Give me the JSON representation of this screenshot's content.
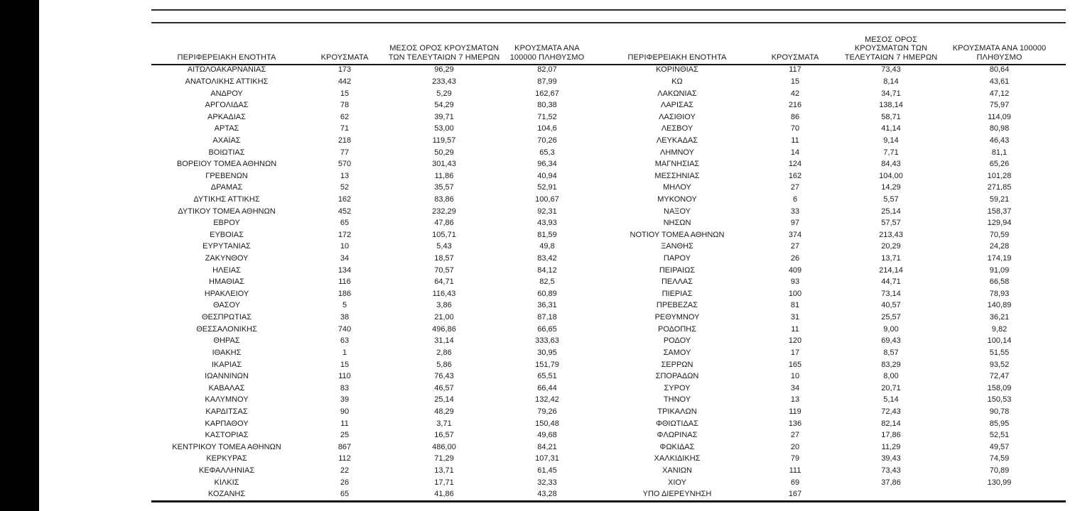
{
  "page": {
    "background_color": "#ffffff",
    "left_band_color": "#000000",
    "rule_color": "#2b2b2b",
    "text_color": "#1a1a1a"
  },
  "table_headers": {
    "col_region": "ΠΕΡΙΦΕΡΕΙΑΚΗ ΕΝΟΤΗΤΑ",
    "col_cases": "ΚΡΟΥΣΜΑΤΑ",
    "col_avg7": "ΜΕΣΟΣ ΟΡΟΣ ΚΡΟΥΣΜΑΤΩΝ ΤΩΝ ΤΕΛΕΥΤΑΙΩΝ 7 ΗΜΕΡΩΝ",
    "col_per100k": "ΚΡΟΥΣΜΑΤΑ ΑΝΑ 100000 ΠΛΗΘΥΣΜΟ"
  },
  "left_table": {
    "rows": [
      [
        "ΑΙΤΩΛΟΑΚΑΡΝΑΝΙΑΣ",
        "173",
        "96,29",
        "82,07"
      ],
      [
        "ΑΝΑΤΟΛΙΚΗΣ ΑΤΤΙΚΗΣ",
        "442",
        "233,43",
        "87,99"
      ],
      [
        "ΑΝΔΡΟΥ",
        "15",
        "5,29",
        "162,67"
      ],
      [
        "ΑΡΓΟΛΙΔΑΣ",
        "78",
        "54,29",
        "80,38"
      ],
      [
        "ΑΡΚΑΔΙΑΣ",
        "62",
        "39,71",
        "71,52"
      ],
      [
        "ΑΡΤΑΣ",
        "71",
        "53,00",
        "104,6"
      ],
      [
        "ΑΧΑΪΑΣ",
        "218",
        "119,57",
        "70,26"
      ],
      [
        "ΒΟΙΩΤΙΑΣ",
        "77",
        "50,29",
        "65,3"
      ],
      [
        "ΒΟΡΕΙΟΥ ΤΟΜΕΑ ΑΘΗΝΩΝ",
        "570",
        "301,43",
        "96,34"
      ],
      [
        "ΓΡΕΒΕΝΩΝ",
        "13",
        "11,86",
        "40,94"
      ],
      [
        "ΔΡΑΜΑΣ",
        "52",
        "35,57",
        "52,91"
      ],
      [
        "ΔΥΤΙΚΗΣ ΑΤΤΙΚΗΣ",
        "162",
        "83,86",
        "100,67"
      ],
      [
        "ΔΥΤΙΚΟΥ ΤΟΜΕΑ ΑΘΗΝΩΝ",
        "452",
        "232,29",
        "92,31"
      ],
      [
        "ΕΒΡΟΥ",
        "65",
        "47,86",
        "43,93"
      ],
      [
        "ΕΥΒΟΙΑΣ",
        "172",
        "105,71",
        "81,59"
      ],
      [
        "ΕΥΡΥΤΑΝΙΑΣ",
        "10",
        "5,43",
        "49,8"
      ],
      [
        "ΖΑΚΥΝΘΟΥ",
        "34",
        "18,57",
        "83,42"
      ],
      [
        "ΗΛΕΙΑΣ",
        "134",
        "70,57",
        "84,12"
      ],
      [
        "ΗΜΑΘΙΑΣ",
        "116",
        "64,71",
        "82,5"
      ],
      [
        "ΗΡΑΚΛΕΙΟΥ",
        "186",
        "116,43",
        "60,89"
      ],
      [
        "ΘΑΣΟΥ",
        "5",
        "3,86",
        "36,31"
      ],
      [
        "ΘΕΣΠΡΩΤΙΑΣ",
        "38",
        "21,00",
        "87,18"
      ],
      [
        "ΘΕΣΣΑΛΟΝΙΚΗΣ",
        "740",
        "496,86",
        "66,65"
      ],
      [
        "ΘΗΡΑΣ",
        "63",
        "31,14",
        "333,63"
      ],
      [
        "ΙΘΑΚΗΣ",
        "1",
        "2,86",
        "30,95"
      ],
      [
        "ΙΚΑΡΙΑΣ",
        "15",
        "5,86",
        "151,79"
      ],
      [
        "ΙΩΑΝΝΙΝΩΝ",
        "110",
        "76,43",
        "65,51"
      ],
      [
        "ΚΑΒΑΛΑΣ",
        "83",
        "46,57",
        "66,44"
      ],
      [
        "ΚΑΛΥΜΝΟΥ",
        "39",
        "25,14",
        "132,42"
      ],
      [
        "ΚΑΡΔΙΤΣΑΣ",
        "90",
        "48,29",
        "79,26"
      ],
      [
        "ΚΑΡΠΑΘΟΥ",
        "11",
        "3,71",
        "150,48"
      ],
      [
        "ΚΑΣΤΟΡΙΑΣ",
        "25",
        "16,57",
        "49,68"
      ],
      [
        "ΚΕΝΤΡΙΚΟΥ ΤΟΜΕΑ ΑΘΗΝΩΝ",
        "867",
        "486,00",
        "84,21"
      ],
      [
        "ΚΕΡΚΥΡΑΣ",
        "112",
        "71,29",
        "107,31"
      ],
      [
        "ΚΕΦΑΛΛΗΝΙΑΣ",
        "22",
        "13,71",
        "61,45"
      ],
      [
        "ΚΙΛΚΙΣ",
        "26",
        "17,71",
        "32,33"
      ],
      [
        "ΚΟΖΑΝΗΣ",
        "65",
        "41,86",
        "43,28"
      ]
    ]
  },
  "right_table": {
    "rows": [
      [
        "ΚΟΡΙΝΘΙΑΣ",
        "117",
        "73,43",
        "80,64"
      ],
      [
        "ΚΩ",
        "15",
        "8,14",
        "43,61"
      ],
      [
        "ΛΑΚΩΝΙΑΣ",
        "42",
        "34,71",
        "47,12"
      ],
      [
        "ΛΑΡΙΣΑΣ",
        "216",
        "138,14",
        "75,97"
      ],
      [
        "ΛΑΣΙΘΙΟΥ",
        "86",
        "58,71",
        "114,09"
      ],
      [
        "ΛΕΣΒΟΥ",
        "70",
        "41,14",
        "80,98"
      ],
      [
        "ΛΕΥΚΑΔΑΣ",
        "11",
        "9,14",
        "46,43"
      ],
      [
        "ΛΗΜΝΟΥ",
        "14",
        "7,71",
        "81,1"
      ],
      [
        "ΜΑΓΝΗΣΙΑΣ",
        "124",
        "84,43",
        "65,26"
      ],
      [
        "ΜΕΣΣΗΝΙΑΣ",
        "162",
        "104,00",
        "101,28"
      ],
      [
        "ΜΗΛΟΥ",
        "27",
        "14,29",
        "271,85"
      ],
      [
        "ΜΥΚΟΝΟΥ",
        "6",
        "5,57",
        "59,21"
      ],
      [
        "ΝΑΞΟΥ",
        "33",
        "25,14",
        "158,37"
      ],
      [
        "ΝΗΣΩΝ",
        "97",
        "57,57",
        "129,94"
      ],
      [
        "ΝΟΤΙΟΥ ΤΟΜΕΑ ΑΘΗΝΩΝ",
        "374",
        "213,43",
        "70,59"
      ],
      [
        "ΞΑΝΘΗΣ",
        "27",
        "20,29",
        "24,28"
      ],
      [
        "ΠΑΡΟΥ",
        "26",
        "13,71",
        "174,19"
      ],
      [
        "ΠΕΙΡΑΙΩΣ",
        "409",
        "214,14",
        "91,09"
      ],
      [
        "ΠΕΛΛΑΣ",
        "93",
        "44,71",
        "66,58"
      ],
      [
        "ΠΙΕΡΙΑΣ",
        "100",
        "73,14",
        "78,93"
      ],
      [
        "ΠΡΕΒΕΖΑΣ",
        "81",
        "40,57",
        "140,89"
      ],
      [
        "ΡΕΘΥΜΝΟΥ",
        "31",
        "25,57",
        "36,21"
      ],
      [
        "ΡΟΔΟΠΗΣ",
        "11",
        "9,00",
        "9,82"
      ],
      [
        "ΡΟΔΟΥ",
        "120",
        "69,43",
        "100,14"
      ],
      [
        "ΣΑΜΟΥ",
        "17",
        "8,57",
        "51,55"
      ],
      [
        "ΣΕΡΡΩΝ",
        "165",
        "83,29",
        "93,52"
      ],
      [
        "ΣΠΟΡΑΔΩΝ",
        "10",
        "8,00",
        "72,47"
      ],
      [
        "ΣΥΡΟΥ",
        "34",
        "20,71",
        "158,09"
      ],
      [
        "ΤΗΝΟΥ",
        "13",
        "5,14",
        "150,53"
      ],
      [
        "ΤΡΙΚΑΛΩΝ",
        "119",
        "72,43",
        "90,78"
      ],
      [
        "ΦΘΙΩΤΙΔΑΣ",
        "136",
        "82,14",
        "85,95"
      ],
      [
        "ΦΛΩΡΙΝΑΣ",
        "27",
        "17,86",
        "52,51"
      ],
      [
        "ΦΩΚΙΔΑΣ",
        "20",
        "11,29",
        "49,57"
      ],
      [
        "ΧΑΛΚΙΔΙΚΗΣ",
        "79",
        "39,43",
        "74,59"
      ],
      [
        "ΧΑΝΙΩΝ",
        "111",
        "73,43",
        "70,89"
      ],
      [
        "ΧΙΟΥ",
        "69",
        "37,86",
        "130,99"
      ],
      [
        "ΥΠΟ ΔΙΕΡΕΥΝΗΣΗ",
        "167",
        "",
        ""
      ]
    ]
  }
}
